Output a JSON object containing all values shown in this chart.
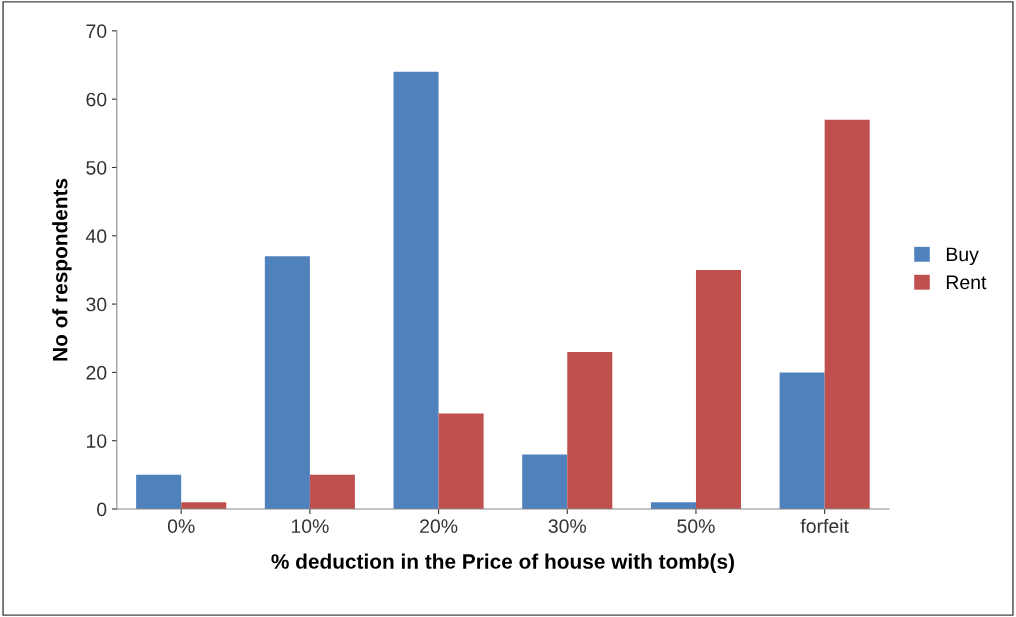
{
  "chart_data": {
    "type": "bar",
    "xlabel": "% deduction in the Price of house with tomb(s)",
    "ylabel": "No of respondents",
    "categories": [
      "0%",
      "10%",
      "20%",
      "30%",
      "50%",
      "forfeit"
    ],
    "series": [
      {
        "name": "Buy",
        "color": "#4f81bd",
        "values": [
          5,
          37,
          64,
          8,
          1,
          20
        ]
      },
      {
        "name": "Rent",
        "color": "#c0504d",
        "values": [
          1,
          5,
          14,
          23,
          35,
          57
        ]
      }
    ],
    "ylim": [
      0,
      70
    ],
    "yticks": [
      0,
      10,
      20,
      30,
      40,
      50,
      60,
      70
    ],
    "grid": false,
    "legend": "right"
  }
}
